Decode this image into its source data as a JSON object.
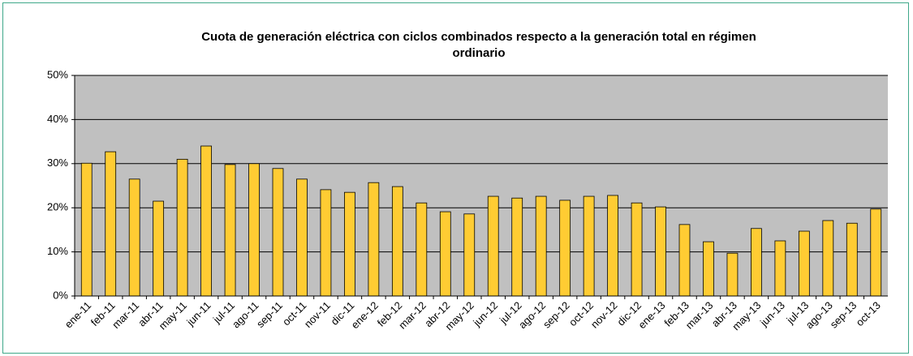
{
  "chart_data": {
    "type": "bar",
    "title": "Cuota de generación eléctrica con ciclos combinados respecto a la generación total en régimen ordinario",
    "categories": [
      "ene-11",
      "feb-11",
      "mar-11",
      "abr-11",
      "may-11",
      "jun-11",
      "jul-11",
      "ago-11",
      "sep-11",
      "oct-11",
      "nov-11",
      "dic-11",
      "ene-12",
      "feb-12",
      "mar-12",
      "abr-12",
      "may-12",
      "jun-12",
      "jul-12",
      "ago-12",
      "sep-12",
      "oct-12",
      "nov-12",
      "dic-12",
      "ene-13",
      "feb-13",
      "mar-13",
      "abr-13",
      "may-13",
      "jun-13",
      "jul-13",
      "ago-13",
      "sep-13",
      "oct-13"
    ],
    "values": [
      30.1,
      32.7,
      26.5,
      21.5,
      31,
      34,
      29.8,
      30,
      28.9,
      26.5,
      24.1,
      23.5,
      25.7,
      24.8,
      21.1,
      19.1,
      18.6,
      22.6,
      22.2,
      22.6,
      21.7,
      22.6,
      22.8,
      21.1,
      20.2,
      16.2,
      12.3,
      9.7,
      15.3,
      12.5,
      14.7,
      17.1,
      16.5,
      19.7
    ],
    "color": "#ffcc33",
    "ylim": [
      0,
      50
    ],
    "yticks": [
      {
        "value": 0,
        "label": "0%"
      },
      {
        "value": 10,
        "label": "10%"
      },
      {
        "value": 20,
        "label": "20%"
      },
      {
        "value": 30,
        "label": "30%"
      },
      {
        "value": 40,
        "label": "40%"
      },
      {
        "value": 50,
        "label": "50%"
      }
    ],
    "grid": true
  }
}
